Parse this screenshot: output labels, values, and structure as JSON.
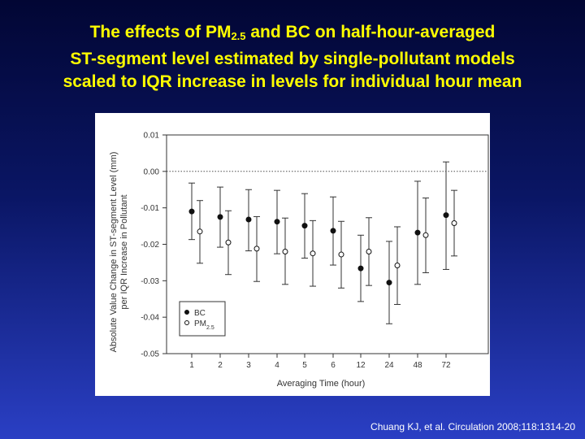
{
  "slide": {
    "title_line1_pre": "The effects of PM",
    "title_line1_sub": "2.5",
    "title_line1_post": " and BC on half-hour-averaged",
    "title_line2": "ST-segment level estimated by single-pollutant models",
    "title_line3": "scaled to IQR increase in levels for individual hour mean",
    "citation": "Chuang KJ, et al. Circulation 2008;118:1314-20"
  },
  "colors": {
    "title": "#ffff00",
    "background_top": "#020634",
    "background_bottom": "#2a3fc4",
    "panel": "#ffffff",
    "ink": "#333333"
  },
  "chart_data": {
    "type": "scatter",
    "xlabel": "Averaging Time (hour)",
    "ylabel_line1": "Absolute Value Change in ST-segment Level (mm)",
    "ylabel_line2": "per IQR Increase in Pollutant",
    "categories": [
      "1",
      "2",
      "3",
      "4",
      "5",
      "6",
      "12",
      "24",
      "48",
      "72"
    ],
    "ylim": [
      -0.05,
      0.01
    ],
    "yticks": [
      0.01,
      0.0,
      -0.01,
      -0.02,
      -0.03,
      -0.04,
      -0.05
    ],
    "ytick_labels": [
      "0.01",
      "0.00",
      "-0.01",
      "-0.02",
      "-0.03",
      "-0.04",
      "-0.05"
    ],
    "reference_line": 0.0,
    "legend": {
      "placement": "bottom-left",
      "bc_label": "BC",
      "pm_label_pre": "PM",
      "pm_label_sub": "2.5"
    },
    "series": [
      {
        "name": "BC",
        "marker": "filled-circle",
        "values": [
          -0.011,
          -0.0125,
          -0.0132,
          -0.0138,
          -0.0149,
          -0.0163,
          -0.0266,
          -0.0305,
          -0.0168,
          -0.012
        ],
        "lower": [
          -0.0187,
          -0.0208,
          -0.0218,
          -0.0226,
          -0.0238,
          -0.0257,
          -0.0357,
          -0.0418,
          -0.031,
          -0.0269
        ],
        "upper": [
          -0.0032,
          -0.0043,
          -0.005,
          -0.0052,
          -0.0061,
          -0.007,
          -0.0175,
          -0.0192,
          -0.0027,
          0.0026
        ]
      },
      {
        "name": "PM2.5",
        "marker": "open-circle",
        "values": [
          -0.0165,
          -0.0195,
          -0.0212,
          -0.022,
          -0.0225,
          -0.0228,
          -0.022,
          -0.0258,
          -0.0175,
          -0.0142
        ],
        "lower": [
          -0.0252,
          -0.0283,
          -0.0302,
          -0.031,
          -0.0315,
          -0.032,
          -0.0313,
          -0.0365,
          -0.0278,
          -0.0232
        ],
        "upper": [
          -0.008,
          -0.0108,
          -0.0124,
          -0.0128,
          -0.0135,
          -0.0137,
          -0.0127,
          -0.0152,
          -0.0073,
          -0.0052
        ]
      }
    ]
  }
}
